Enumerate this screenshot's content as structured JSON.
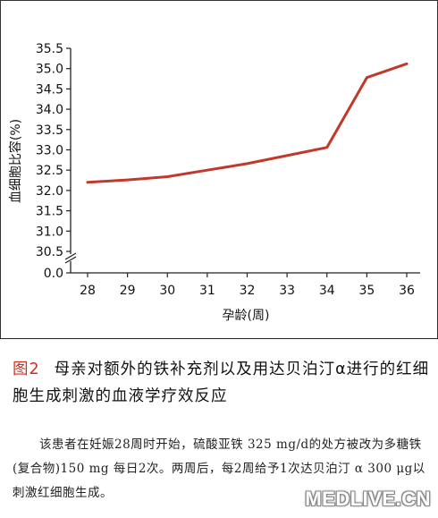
{
  "chart_data": {
    "type": "line",
    "x": [
      28,
      29,
      30,
      31,
      32,
      33,
      34,
      35,
      36
    ],
    "series": [
      {
        "values": [
          32.2,
          32.26,
          32.34,
          32.5,
          32.66,
          32.86,
          33.06,
          34.78,
          35.12
        ],
        "color": "#c0392b"
      }
    ],
    "xlabel": "孕龄(周)",
    "ylabel": "血细胞比容(%)",
    "xticks": [
      28,
      29,
      30,
      31,
      32,
      33,
      34,
      35,
      36
    ],
    "yticks": [
      "35.5",
      "35.0",
      "34.5",
      "34.0",
      "33.5",
      "33.0",
      "32.5",
      "32.0",
      "31.5",
      "31.0",
      "30.5",
      "0.0"
    ],
    "ylim": [
      30.5,
      35.5
    ],
    "y_axis_break": true,
    "grid": false
  },
  "caption": {
    "fig_label": "图2",
    "title": "母亲对额外的铁补充剂以及用达贝泊汀α进行的红细胞生成刺激的血液学疗效反应",
    "note": "该患者在妊娠28周时开始，硫酸亚铁 325 mg/d的处方被改为多糖铁(复合物)150 mg 每日2次。两周后，每2周给予1次达贝泊汀 α 300 μg以刺激红细胞生成。"
  },
  "watermark": "MEDLIVE.CN"
}
